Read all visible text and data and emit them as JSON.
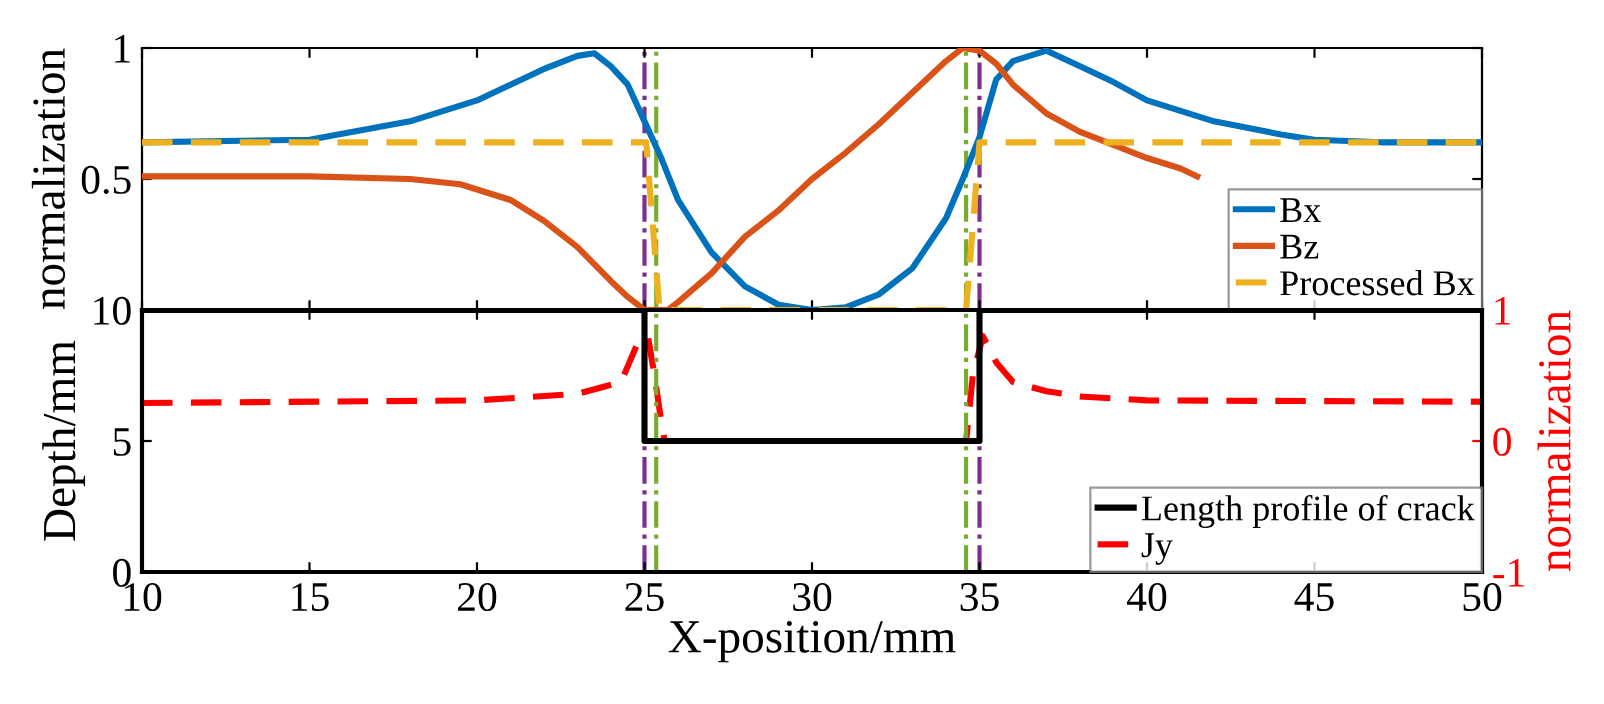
{
  "chart_data": [
    {
      "type": "line",
      "ylabel": "normalization",
      "xlim": [
        10,
        50
      ],
      "xticks": [
        10,
        15,
        20,
        25,
        30,
        35,
        40,
        45,
        50
      ],
      "ylim": [
        0,
        1
      ],
      "yticks": [
        {
          "value": 0,
          "label": null
        },
        0.5,
        1
      ],
      "tick_labels": "y",
      "legend": "bottom right",
      "grid": false,
      "series": [
        {
          "name": "Bx",
          "color": "#0072bd",
          "line_style": "solid",
          "x": [
            10,
            15,
            18,
            20,
            22,
            23,
            23.5,
            24,
            24.5,
            25,
            25.5,
            26,
            27,
            28,
            29,
            30,
            31,
            32,
            33,
            34,
            34.5,
            35,
            35.5,
            36,
            37,
            38,
            39,
            40,
            42,
            44,
            45,
            47,
            50
          ],
          "values": [
            0.64,
            0.65,
            0.72,
            0.8,
            0.92,
            0.97,
            0.98,
            0.93,
            0.86,
            0.72,
            0.58,
            0.42,
            0.22,
            0.09,
            0.02,
            0,
            0.01,
            0.06,
            0.16,
            0.35,
            0.5,
            0.66,
            0.88,
            0.95,
            0.99,
            0.93,
            0.87,
            0.8,
            0.72,
            0.67,
            0.65,
            0.64,
            0.64
          ]
        },
        {
          "name": "Bz",
          "color": "#d95319",
          "line_style": "solid",
          "x": [
            10,
            15,
            18,
            19.5,
            21,
            22,
            23,
            24,
            24.5,
            25,
            25.7,
            26,
            27,
            28,
            29,
            30,
            31,
            32,
            33,
            34,
            34.5,
            35,
            35.5,
            36,
            37,
            38,
            39,
            40,
            41,
            41.5
          ],
          "values": [
            0.51,
            0.51,
            0.5,
            0.48,
            0.42,
            0.34,
            0.24,
            0.11,
            0.05,
            0,
            0,
            0.03,
            0.14,
            0.28,
            0.38,
            0.5,
            0.6,
            0.71,
            0.83,
            0.95,
            1,
            0.99,
            0.94,
            0.86,
            0.75,
            0.68,
            0.63,
            0.58,
            0.54,
            0.51
          ]
        },
        {
          "name": "Processed Bx",
          "color": "#edb120",
          "line_style": "dashed",
          "x": [
            10,
            25.05,
            25.45,
            34.6,
            35.0,
            50
          ],
          "values": [
            0.64,
            0.64,
            0,
            0,
            0.64,
            0.64
          ]
        }
      ],
      "ref_lines": [
        {
          "axis": "x",
          "value": 25,
          "color": "#7e2f8e",
          "line_style": "dashdot"
        },
        {
          "axis": "x",
          "value": 25.35,
          "color": "#77ac30",
          "line_style": "dashdot"
        },
        {
          "axis": "x",
          "value": 34.6,
          "color": "#77ac30",
          "line_style": "dashdot"
        },
        {
          "axis": "x",
          "value": 35,
          "color": "#7e2f8e",
          "line_style": "dashdot"
        }
      ]
    },
    {
      "type": "line",
      "xlabel": "X-position/mm",
      "ylabel": "Depth/mm",
      "y2label": "normalization",
      "xlim": [
        10,
        50
      ],
      "xticks": [
        10,
        15,
        20,
        25,
        30,
        35,
        40,
        45,
        50
      ],
      "ylim": [
        0,
        10
      ],
      "yticks": [
        0,
        5,
        10
      ],
      "y2lim": [
        -1,
        1
      ],
      "y2ticks": [
        -1,
        0,
        1
      ],
      "legend": "bottom right",
      "grid": false,
      "series": [
        {
          "name": "Length profile of crack",
          "color": "#000000",
          "line_style": "solid",
          "x": [
            10,
            25,
            25,
            35,
            35,
            50
          ],
          "values": [
            10,
            10,
            5,
            5,
            10,
            10
          ]
        },
        {
          "name": "Jy",
          "color": "#ff0000",
          "line_style": "dashed",
          "axis": "y2",
          "x": [
            10,
            20,
            23,
            24.3,
            24.8,
            25.1,
            25.3,
            25.5,
            25.6,
            34.6,
            34.8,
            35.1,
            35.5,
            36,
            37,
            38,
            40,
            50
          ],
          "values": [
            0.29,
            0.31,
            0.36,
            0.45,
            0.75,
            0.8,
            0.5,
            0.15,
            0,
            0,
            0.5,
            0.8,
            0.6,
            0.45,
            0.38,
            0.34,
            0.31,
            0.3
          ]
        }
      ],
      "ref_lines": [
        {
          "axis": "x",
          "value": 25,
          "color": "#7e2f8e",
          "line_style": "dashdot"
        },
        {
          "axis": "x",
          "value": 25.35,
          "color": "#77ac30",
          "line_style": "dashdot"
        },
        {
          "axis": "x",
          "value": 34.6,
          "color": "#77ac30",
          "line_style": "dashdot"
        },
        {
          "axis": "x",
          "value": 35,
          "color": "#7e2f8e",
          "line_style": "dashdot"
        }
      ]
    }
  ]
}
